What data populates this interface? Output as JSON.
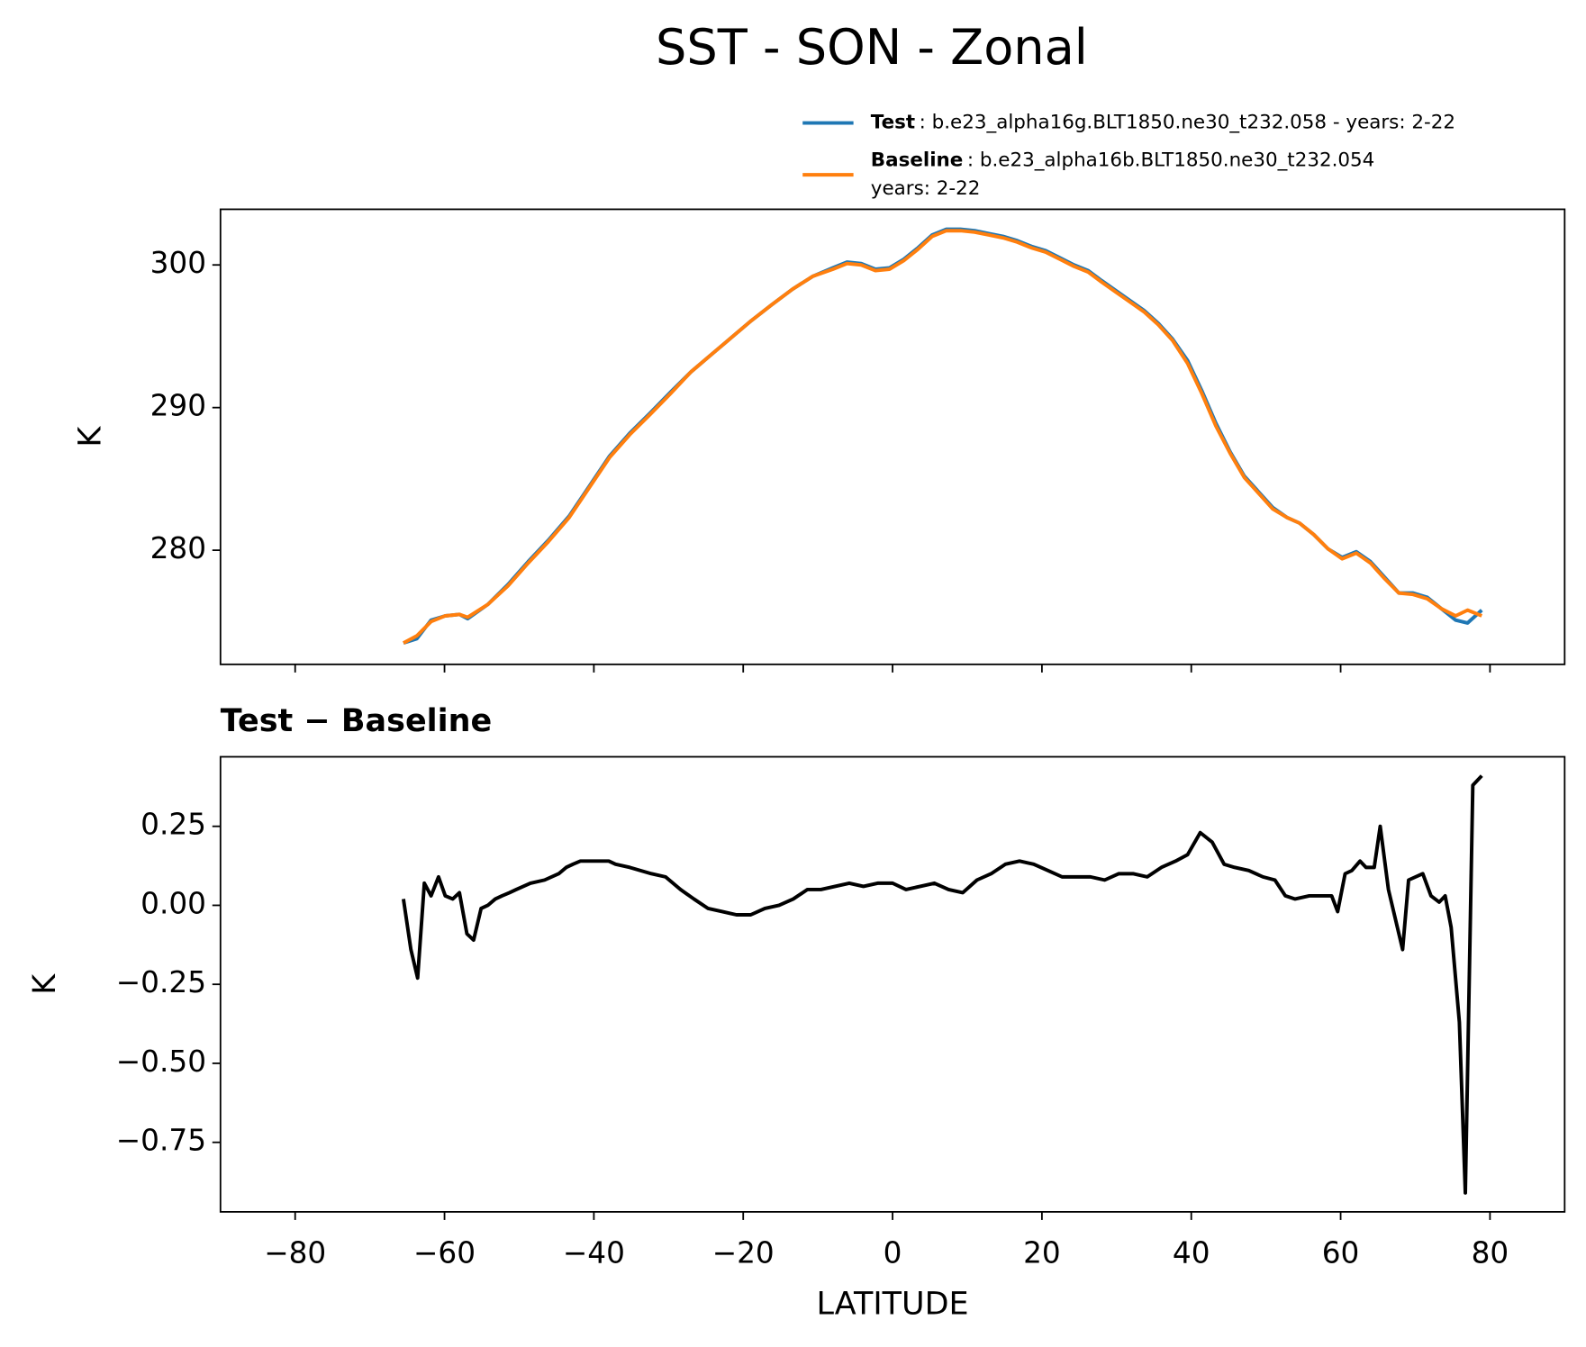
{
  "title": "SST - SON - Zonal",
  "chart_data": [
    {
      "type": "line",
      "ylabel": "K",
      "xlim": [
        -90,
        90
      ],
      "xticks": [
        {
          "value": -80,
          "label": "−80"
        },
        {
          "value": -60,
          "label": "−60"
        },
        {
          "value": -40,
          "label": "−40"
        },
        {
          "value": -20,
          "label": "−20"
        },
        0,
        20,
        40,
        60,
        80
      ],
      "xtick_labels": false,
      "ylim": [
        272,
        303.9
      ],
      "yticks": [
        280,
        290,
        300
      ],
      "legend": "upper right",
      "x": [
        -65.5,
        -63.7,
        -61.8,
        -59.9,
        -58.0,
        -56.9,
        -54.2,
        -51.5,
        -48.8,
        -46.1,
        -43.3,
        -40.6,
        -37.9,
        -35.2,
        -32.5,
        -29.7,
        -27.0,
        -24.3,
        -21.6,
        -18.9,
        -16.2,
        -13.4,
        -10.7,
        -8.0,
        -6.1,
        -4.2,
        -2.3,
        -0.4,
        1.5,
        3.4,
        5.3,
        7.2,
        9.1,
        11.0,
        12.9,
        14.8,
        16.7,
        18.6,
        20.5,
        22.4,
        24.3,
        26.2,
        28.0,
        29.9,
        31.8,
        33.7,
        35.6,
        37.5,
        39.5,
        41.4,
        43.3,
        45.2,
        47.1,
        49.0,
        50.9,
        52.8,
        54.5,
        56.4,
        58.3,
        60.2,
        62.1,
        64.0,
        65.9,
        67.8,
        69.7,
        71.6,
        73.5,
        75.4,
        77.0,
        78.9
      ],
      "series": [
        {
          "name": "Test",
          "detail": [
            ": b.e23_alpha16g.BLT1850.ne30_t232.058 - years: 2-22"
          ],
          "color": "#1f77b4",
          "values": [
            273.5,
            273.8,
            275.1,
            275.4,
            275.5,
            275.2,
            276.2,
            277.6,
            279.2,
            280.7,
            282.4,
            284.5,
            286.6,
            288.2,
            289.6,
            291.1,
            292.5,
            293.7,
            294.9,
            296.1,
            297.2,
            298.3,
            299.2,
            299.8,
            300.2,
            300.1,
            299.7,
            299.8,
            300.4,
            301.2,
            302.1,
            302.5,
            302.5,
            302.4,
            302.2,
            302.0,
            301.7,
            301.3,
            301.0,
            300.5,
            300.0,
            299.6,
            298.9,
            298.2,
            297.5,
            296.8,
            295.9,
            294.8,
            293.3,
            291.2,
            288.9,
            286.9,
            285.2,
            284.1,
            283.0,
            282.3,
            281.9,
            281.1,
            280.1,
            279.5,
            279.9,
            279.2,
            278.1,
            277.0,
            277.0,
            276.7,
            275.9,
            275.1,
            274.9,
            275.8
          ]
        },
        {
          "name": "Baseline",
          "detail": [
            ": b.e23_alpha16b.BLT1850.ne30_t232.054",
            "years: 2-22"
          ],
          "color": "#ff7f0e",
          "values": [
            273.5,
            274.0,
            275.0,
            275.4,
            275.5,
            275.3,
            276.2,
            277.5,
            279.1,
            280.6,
            282.3,
            284.4,
            286.5,
            288.1,
            289.5,
            291.0,
            292.5,
            293.7,
            294.9,
            296.1,
            297.2,
            298.3,
            299.2,
            299.7,
            300.1,
            300.0,
            299.6,
            299.7,
            300.3,
            301.1,
            302.0,
            302.4,
            302.4,
            302.3,
            302.1,
            301.9,
            301.6,
            301.2,
            300.9,
            300.4,
            299.9,
            299.5,
            298.8,
            298.1,
            297.4,
            296.7,
            295.8,
            294.7,
            293.1,
            291.0,
            288.7,
            286.8,
            285.1,
            284.0,
            282.9,
            282.3,
            281.9,
            281.1,
            280.1,
            279.4,
            279.8,
            279.1,
            278.0,
            277.0,
            276.9,
            276.6,
            275.9,
            275.4,
            275.8,
            275.4
          ]
        }
      ]
    },
    {
      "type": "line",
      "title": "Test − Baseline",
      "xlabel": "LATITUDE",
      "ylabel": "K",
      "xlim": [
        -90,
        90
      ],
      "xticks": [
        {
          "value": -80,
          "label": "−80"
        },
        {
          "value": -60,
          "label": "−60"
        },
        {
          "value": -40,
          "label": "−40"
        },
        {
          "value": -20,
          "label": "−20"
        },
        0,
        20,
        40,
        60,
        80
      ],
      "ylim": [
        -0.97,
        0.47
      ],
      "yticks": [
        {
          "value": -0.75,
          "label": "−0.75"
        },
        {
          "value": -0.5,
          "label": "−0.50"
        },
        {
          "value": -0.25,
          "label": "−0.25"
        },
        {
          "value": 0,
          "label": "0.00"
        },
        0.25
      ],
      "x": [
        -65.5,
        -64.5,
        -63.6,
        -62.7,
        -61.8,
        -60.8,
        -59.9,
        -58.9,
        -58.0,
        -57.0,
        -56.1,
        -55.1,
        -54.2,
        -53.2,
        -52.3,
        -51.3,
        -50.4,
        -48.5,
        -46.6,
        -44.7,
        -43.7,
        -42.8,
        -41.8,
        -39.9,
        -38.0,
        -37.1,
        -35.2,
        -32.3,
        -30.4,
        -28.4,
        -26.6,
        -24.7,
        -22.8,
        -20.9,
        -19.0,
        -17.1,
        -15.2,
        -13.3,
        -11.4,
        -9.6,
        -7.7,
        -5.8,
        -3.9,
        -2.0,
        0,
        1.8,
        3.7,
        5.6,
        7.5,
        9.4,
        11.3,
        13.2,
        15.1,
        17.0,
        18.9,
        20.8,
        22.7,
        24.6,
        26.5,
        28.4,
        30.3,
        32.2,
        34.1,
        36.0,
        37.9,
        39.5,
        41.2,
        42.8,
        44.4,
        45.8,
        47.7,
        49.6,
        51.2,
        52.6,
        53.9,
        55.8,
        57.7,
        58.8,
        59.6,
        60.6,
        61.5,
        62.6,
        63.4,
        64.5,
        65.3,
        66.4,
        68.3,
        69.1,
        71.0,
        72.1,
        73.2,
        74.0,
        74.8,
        75.9,
        76.7,
        77.7,
        78.9
      ],
      "series": [
        {
          "name": "Test − Baseline",
          "color": "#000000",
          "values": [
            0.02,
            -0.14,
            -0.23,
            0.07,
            0.03,
            0.09,
            0.03,
            0.02,
            0.04,
            -0.09,
            -0.11,
            -0.01,
            0.0,
            0.02,
            0.03,
            0.04,
            0.05,
            0.07,
            0.08,
            0.1,
            0.12,
            0.13,
            0.14,
            0.14,
            0.14,
            0.13,
            0.12,
            0.1,
            0.09,
            0.05,
            0.02,
            -0.01,
            -0.02,
            -0.03,
            -0.03,
            -0.01,
            0.0,
            0.02,
            0.05,
            0.05,
            0.06,
            0.07,
            0.06,
            0.07,
            0.07,
            0.05,
            0.06,
            0.07,
            0.05,
            0.04,
            0.08,
            0.1,
            0.13,
            0.14,
            0.13,
            0.11,
            0.09,
            0.09,
            0.09,
            0.08,
            0.1,
            0.1,
            0.09,
            0.12,
            0.14,
            0.16,
            0.23,
            0.2,
            0.13,
            0.12,
            0.11,
            0.09,
            0.08,
            0.03,
            0.02,
            0.03,
            0.03,
            0.03,
            -0.02,
            0.1,
            0.11,
            0.14,
            0.12,
            0.12,
            0.25,
            0.05,
            -0.14,
            0.08,
            0.1,
            0.03,
            0.01,
            0.03,
            -0.07,
            -0.37,
            -0.91,
            0.38,
            0.41
          ]
        }
      ]
    }
  ]
}
